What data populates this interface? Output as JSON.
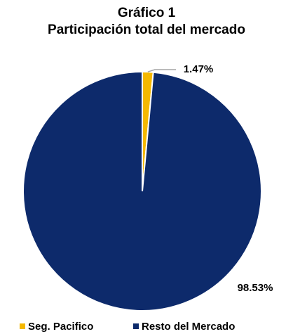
{
  "chart_data": {
    "type": "pie",
    "title": "Gráfico 1",
    "subtitle": "Participación total del mercado",
    "categories": [
      "Seg. Pacifico",
      "Resto del Mercado"
    ],
    "values": [
      1.47,
      98.53
    ],
    "value_labels": [
      "1.47%",
      "98.53%"
    ],
    "colors": [
      "#f5b800",
      "#0d2a6b"
    ],
    "legend": "bottom"
  }
}
